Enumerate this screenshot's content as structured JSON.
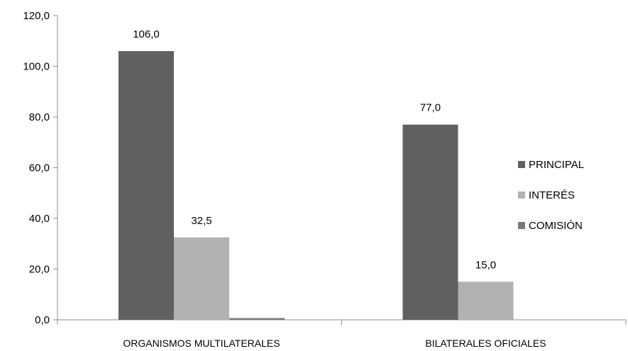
{
  "chart_data": {
    "type": "bar",
    "categories": [
      "ORGANISMOS MULTILATERALES",
      "BILATERALES OFICIALES"
    ],
    "series": [
      {
        "name": "PRINCIPAL",
        "color": "#606060",
        "values": [
          106.0,
          77.0
        ],
        "labels": [
          "106,0",
          "77,0"
        ]
      },
      {
        "name": "INTERÉS",
        "color": "#b2b2b2",
        "values": [
          32.5,
          15.0
        ],
        "labels": [
          "32,5",
          "15,0"
        ]
      },
      {
        "name": "COMISIÓN",
        "color": "#7a7a7a",
        "values": [
          0.7,
          0.0
        ],
        "labels": [
          "",
          ""
        ]
      }
    ],
    "yticks": [
      "0,0",
      "20,0",
      "40,0",
      "60,0",
      "80,0",
      "100,0",
      "120,0"
    ],
    "ylim": [
      0,
      120
    ],
    "grid": false,
    "legend_position": "right"
  }
}
